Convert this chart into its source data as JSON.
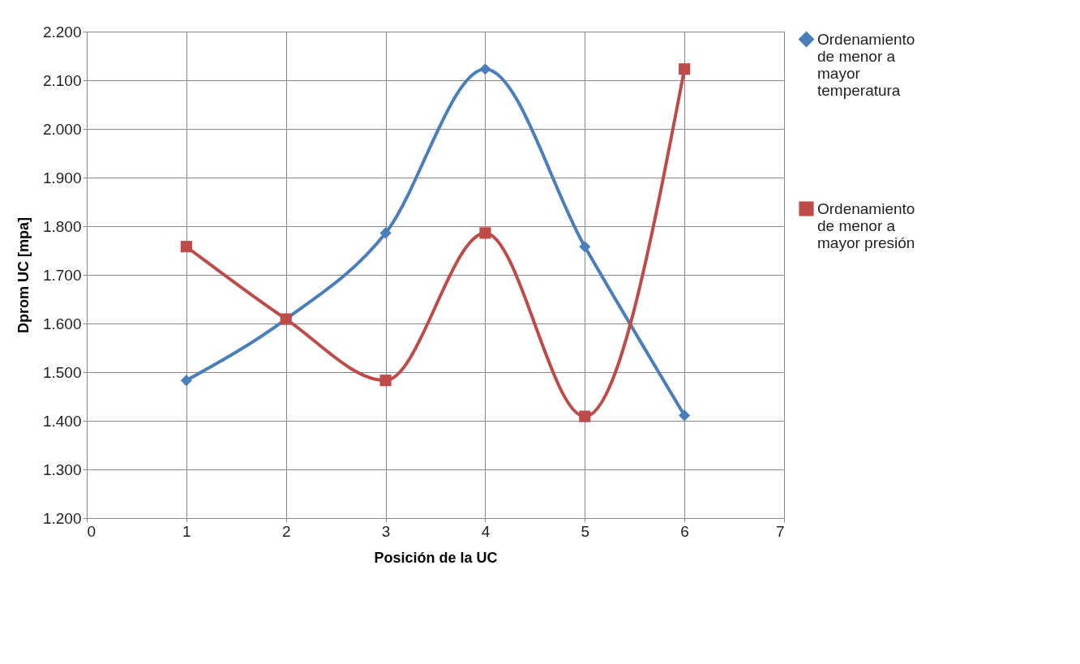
{
  "chart_data": {
    "type": "line",
    "xlabel": "Posición de la UC",
    "ylabel": "Dprom UC  [mpa]",
    "x": [
      1,
      2,
      3,
      4,
      5,
      6
    ],
    "series": [
      {
        "name": "Ordenamiento de menor a mayor temperatura",
        "color": "#4a7ebb",
        "marker": "diamond",
        "values": [
          1.483,
          1.609,
          1.786,
          2.123,
          1.758,
          1.411
        ]
      },
      {
        "name": "Ordenamiento de menor a mayor presión",
        "color": "#be4b48",
        "marker": "square",
        "values": [
          1.758,
          1.609,
          1.483,
          1.786,
          1.409,
          2.123
        ]
      }
    ],
    "xlim": [
      0,
      7
    ],
    "xticks": [
      0,
      1,
      2,
      3,
      4,
      5,
      6,
      7
    ],
    "ylim": [
      1.2,
      2.2
    ],
    "yticks": [
      {
        "value": 1.2,
        "label": "1.200"
      },
      {
        "value": 1.3,
        "label": "1.300"
      },
      {
        "value": 1.4,
        "label": "1.400"
      },
      {
        "value": 1.5,
        "label": "1.500"
      },
      {
        "value": 1.6,
        "label": "1.600"
      },
      {
        "value": 1.7,
        "label": "1.700"
      },
      {
        "value": 1.8,
        "label": "1.800"
      },
      {
        "value": 1.9,
        "label": "1.900"
      },
      {
        "value": 2.0,
        "label": "2.000"
      },
      {
        "value": 2.1,
        "label": "2.100"
      },
      {
        "value": 2.2,
        "label": "2.200"
      }
    ],
    "grid": true,
    "legend": "right",
    "line_style": "solid"
  }
}
